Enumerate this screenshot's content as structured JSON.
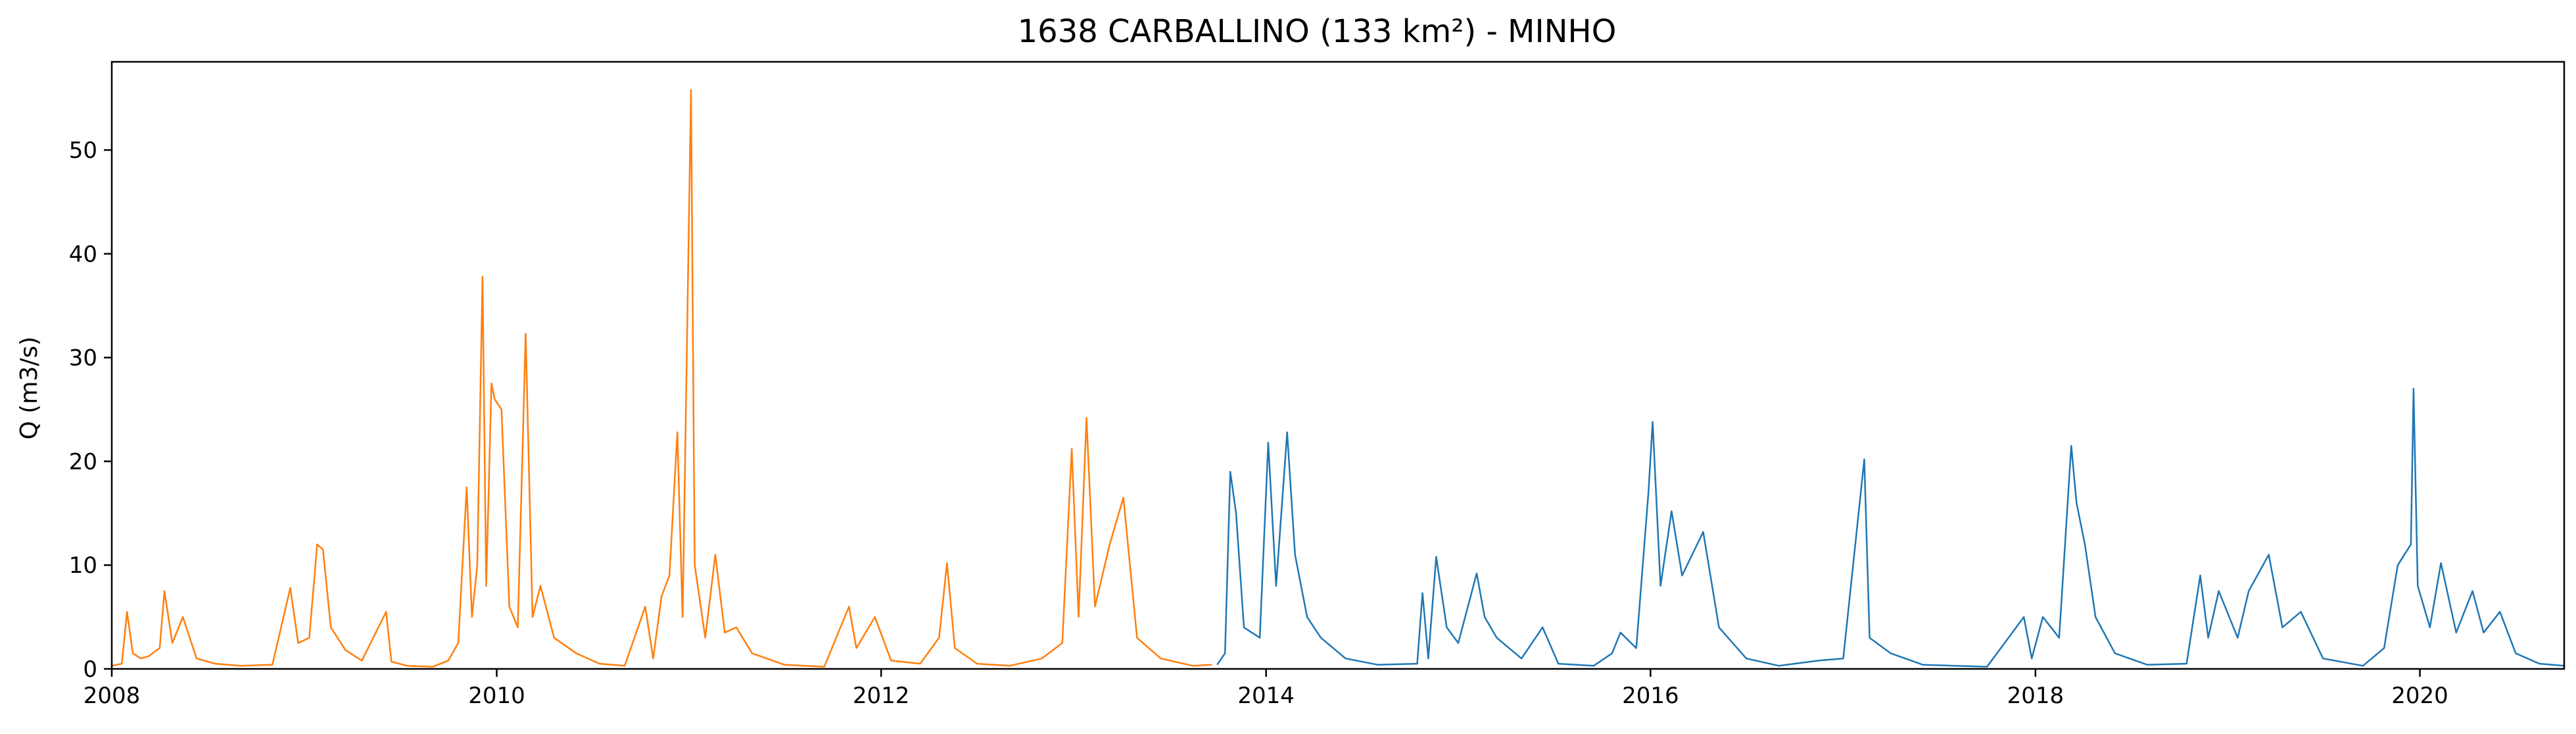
{
  "chart_data": {
    "type": "line",
    "title": "1638 CARBALLINO (133 km²) - MINHO",
    "xlabel": "",
    "ylabel": "Q (m3/s)",
    "xlim": [
      "2008-01-01",
      "2020-10-01"
    ],
    "ylim": [
      0,
      58.5
    ],
    "x_ticks": [
      "2008",
      "2010",
      "2012",
      "2014",
      "2016",
      "2018",
      "2020"
    ],
    "y_ticks": [
      0,
      10,
      20,
      30,
      40,
      50
    ],
    "grid": false,
    "legend": "none",
    "series": [
      {
        "color": "#ff7f0e",
        "points": [
          [
            "2008-01-01",
            0.3
          ],
          [
            "2008-01-20",
            0.5
          ],
          [
            "2008-01-30",
            5.5
          ],
          [
            "2008-02-10",
            1.5
          ],
          [
            "2008-02-25",
            1.0
          ],
          [
            "2008-03-10",
            1.2
          ],
          [
            "2008-04-01",
            2.0
          ],
          [
            "2008-04-10",
            7.5
          ],
          [
            "2008-04-25",
            2.5
          ],
          [
            "2008-05-15",
            5.0
          ],
          [
            "2008-06-10",
            1.0
          ],
          [
            "2008-07-15",
            0.5
          ],
          [
            "2008-09-01",
            0.3
          ],
          [
            "2008-11-01",
            0.4
          ],
          [
            "2008-12-05",
            7.8
          ],
          [
            "2008-12-20",
            2.5
          ],
          [
            "2009-01-10",
            3.0
          ],
          [
            "2009-01-25",
            12.0
          ],
          [
            "2009-02-05",
            11.5
          ],
          [
            "2009-02-20",
            4.0
          ],
          [
            "2009-03-20",
            1.8
          ],
          [
            "2009-04-20",
            0.8
          ],
          [
            "2009-06-05",
            5.5
          ],
          [
            "2009-06-15",
            0.7
          ],
          [
            "2009-07-15",
            0.3
          ],
          [
            "2009-09-01",
            0.2
          ],
          [
            "2009-10-01",
            0.8
          ],
          [
            "2009-10-20",
            2.5
          ],
          [
            "2009-11-05",
            17.5
          ],
          [
            "2009-11-15",
            5.0
          ],
          [
            "2009-11-25",
            10.0
          ],
          [
            "2009-12-05",
            37.8
          ],
          [
            "2009-12-12",
            8.0
          ],
          [
            "2009-12-22",
            27.5
          ],
          [
            "2009-12-28",
            26.0
          ],
          [
            "2010-01-10",
            25.0
          ],
          [
            "2010-01-25",
            6.0
          ],
          [
            "2010-02-10",
            4.0
          ],
          [
            "2010-02-25",
            32.3
          ],
          [
            "2010-03-10",
            5.0
          ],
          [
            "2010-03-25",
            8.0
          ],
          [
            "2010-04-20",
            3.0
          ],
          [
            "2010-06-01",
            1.5
          ],
          [
            "2010-07-15",
            0.5
          ],
          [
            "2010-09-01",
            0.3
          ],
          [
            "2010-10-10",
            6.0
          ],
          [
            "2010-10-25",
            1.0
          ],
          [
            "2010-11-10",
            7.0
          ],
          [
            "2010-11-25",
            9.0
          ],
          [
            "2010-12-10",
            22.8
          ],
          [
            "2010-12-20",
            5.0
          ],
          [
            "2011-01-05",
            55.8
          ],
          [
            "2011-01-12",
            10.0
          ],
          [
            "2011-02-01",
            3.0
          ],
          [
            "2011-02-20",
            11.0
          ],
          [
            "2011-03-10",
            3.5
          ],
          [
            "2011-04-01",
            4.0
          ],
          [
            "2011-05-01",
            1.5
          ],
          [
            "2011-07-01",
            0.4
          ],
          [
            "2011-09-15",
            0.2
          ],
          [
            "2011-11-01",
            6.0
          ],
          [
            "2011-11-15",
            2.0
          ],
          [
            "2011-12-20",
            5.0
          ],
          [
            "2012-01-20",
            0.8
          ],
          [
            "2012-03-15",
            0.5
          ],
          [
            "2012-04-20",
            3.0
          ],
          [
            "2012-05-05",
            10.2
          ],
          [
            "2012-05-20",
            2.0
          ],
          [
            "2012-07-01",
            0.5
          ],
          [
            "2012-09-01",
            0.3
          ],
          [
            "2012-11-01",
            1.0
          ],
          [
            "2012-12-10",
            2.5
          ],
          [
            "2012-12-28",
            21.2
          ],
          [
            "2013-01-10",
            5.0
          ],
          [
            "2013-01-25",
            24.2
          ],
          [
            "2013-02-10",
            6.0
          ],
          [
            "2013-03-10",
            12.0
          ],
          [
            "2013-04-05",
            16.5
          ],
          [
            "2013-05-01",
            3.0
          ],
          [
            "2013-06-15",
            1.0
          ],
          [
            "2013-08-15",
            0.3
          ],
          [
            "2013-09-20",
            0.4
          ]
        ]
      },
      {
        "color": "#1f77b4",
        "points": [
          [
            "2013-09-30",
            0.4
          ],
          [
            "2013-10-15",
            1.5
          ],
          [
            "2013-10-25",
            19.0
          ],
          [
            "2013-11-05",
            15.0
          ],
          [
            "2013-11-20",
            4.0
          ],
          [
            "2013-12-20",
            3.0
          ],
          [
            "2014-01-05",
            21.8
          ],
          [
            "2014-01-20",
            8.0
          ],
          [
            "2014-02-10",
            22.8
          ],
          [
            "2014-02-25",
            11.0
          ],
          [
            "2014-03-20",
            5.0
          ],
          [
            "2014-04-15",
            3.0
          ],
          [
            "2014-06-01",
            1.0
          ],
          [
            "2014-08-01",
            0.4
          ],
          [
            "2014-10-15",
            0.5
          ],
          [
            "2014-10-25",
            7.3
          ],
          [
            "2014-11-05",
            1.0
          ],
          [
            "2014-11-20",
            10.8
          ],
          [
            "2014-12-10",
            4.0
          ],
          [
            "2015-01-01",
            2.5
          ],
          [
            "2015-02-05",
            9.2
          ],
          [
            "2015-02-20",
            5.0
          ],
          [
            "2015-03-15",
            3.0
          ],
          [
            "2015-05-01",
            1.0
          ],
          [
            "2015-06-10",
            4.0
          ],
          [
            "2015-07-10",
            0.5
          ],
          [
            "2015-09-15",
            0.3
          ],
          [
            "2015-10-20",
            1.5
          ],
          [
            "2015-11-05",
            3.5
          ],
          [
            "2015-12-05",
            2.0
          ],
          [
            "2015-12-28",
            17.0
          ],
          [
            "2016-01-05",
            23.8
          ],
          [
            "2016-01-20",
            8.0
          ],
          [
            "2016-02-10",
            15.2
          ],
          [
            "2016-03-01",
            9.0
          ],
          [
            "2016-04-10",
            13.2
          ],
          [
            "2016-05-10",
            4.0
          ],
          [
            "2016-07-01",
            1.0
          ],
          [
            "2016-09-01",
            0.3
          ],
          [
            "2016-11-15",
            0.8
          ],
          [
            "2017-01-01",
            1.0
          ],
          [
            "2017-02-10",
            20.2
          ],
          [
            "2017-02-20",
            3.0
          ],
          [
            "2017-04-01",
            1.5
          ],
          [
            "2017-06-01",
            0.4
          ],
          [
            "2017-10-01",
            0.2
          ],
          [
            "2017-12-10",
            5.0
          ],
          [
            "2017-12-25",
            1.0
          ],
          [
            "2018-01-15",
            5.0
          ],
          [
            "2018-02-15",
            3.0
          ],
          [
            "2018-03-10",
            21.5
          ],
          [
            "2018-03-20",
            16.0
          ],
          [
            "2018-04-05",
            12.0
          ],
          [
            "2018-04-25",
            5.0
          ],
          [
            "2018-06-01",
            1.5
          ],
          [
            "2018-08-01",
            0.4
          ],
          [
            "2018-10-15",
            0.5
          ],
          [
            "2018-11-10",
            9.0
          ],
          [
            "2018-11-25",
            3.0
          ],
          [
            "2018-12-15",
            7.5
          ],
          [
            "2019-01-20",
            3.0
          ],
          [
            "2019-02-10",
            7.5
          ],
          [
            "2019-03-20",
            11.0
          ],
          [
            "2019-04-15",
            4.0
          ],
          [
            "2019-05-20",
            5.5
          ],
          [
            "2019-07-01",
            1.0
          ],
          [
            "2019-09-15",
            0.3
          ],
          [
            "2019-10-25",
            2.0
          ],
          [
            "2019-11-20",
            10.0
          ],
          [
            "2019-12-15",
            12.0
          ],
          [
            "2019-12-20",
            27.0
          ],
          [
            "2019-12-28",
            8.0
          ],
          [
            "2020-01-20",
            4.0
          ],
          [
            "2020-02-10",
            10.2
          ],
          [
            "2020-03-10",
            3.5
          ],
          [
            "2020-04-10",
            7.5
          ],
          [
            "2020-05-01",
            3.5
          ],
          [
            "2020-06-01",
            5.5
          ],
          [
            "2020-07-01",
            1.5
          ],
          [
            "2020-08-15",
            0.5
          ],
          [
            "2020-10-01",
            0.3
          ]
        ]
      }
    ]
  }
}
